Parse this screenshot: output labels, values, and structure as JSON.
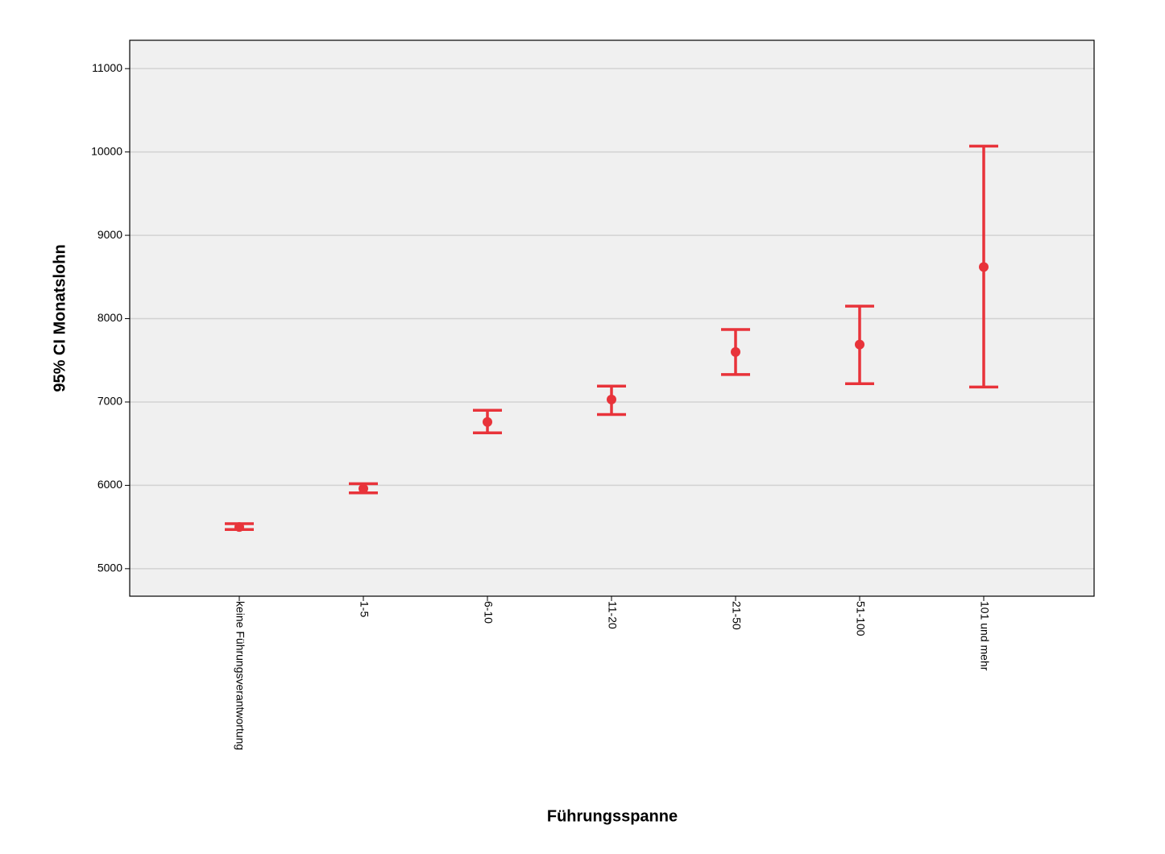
{
  "chart_data": {
    "type": "errorbar",
    "x_label": "Führungsspanne",
    "y_label": "95% CI Monatslohn",
    "categories": [
      "keine Führungsverantwortung",
      "1-5",
      "6-10",
      "11-20",
      "21-50",
      "51-100",
      "101 und mehr"
    ],
    "series": [
      {
        "color": "#e8333a",
        "values": [
          5500,
          5960,
          6760,
          7030,
          7600,
          7690,
          8620
        ],
        "lower": [
          5470,
          5910,
          6630,
          6850,
          7330,
          7220,
          7180
        ],
        "upper": [
          5540,
          6020,
          6900,
          7190,
          7870,
          8150,
          10070
        ]
      }
    ],
    "ylim": [
      4670,
      11340
    ],
    "yticks": [
      5000,
      6000,
      7000,
      8000,
      9000,
      10000,
      11000
    ],
    "grid": true
  }
}
